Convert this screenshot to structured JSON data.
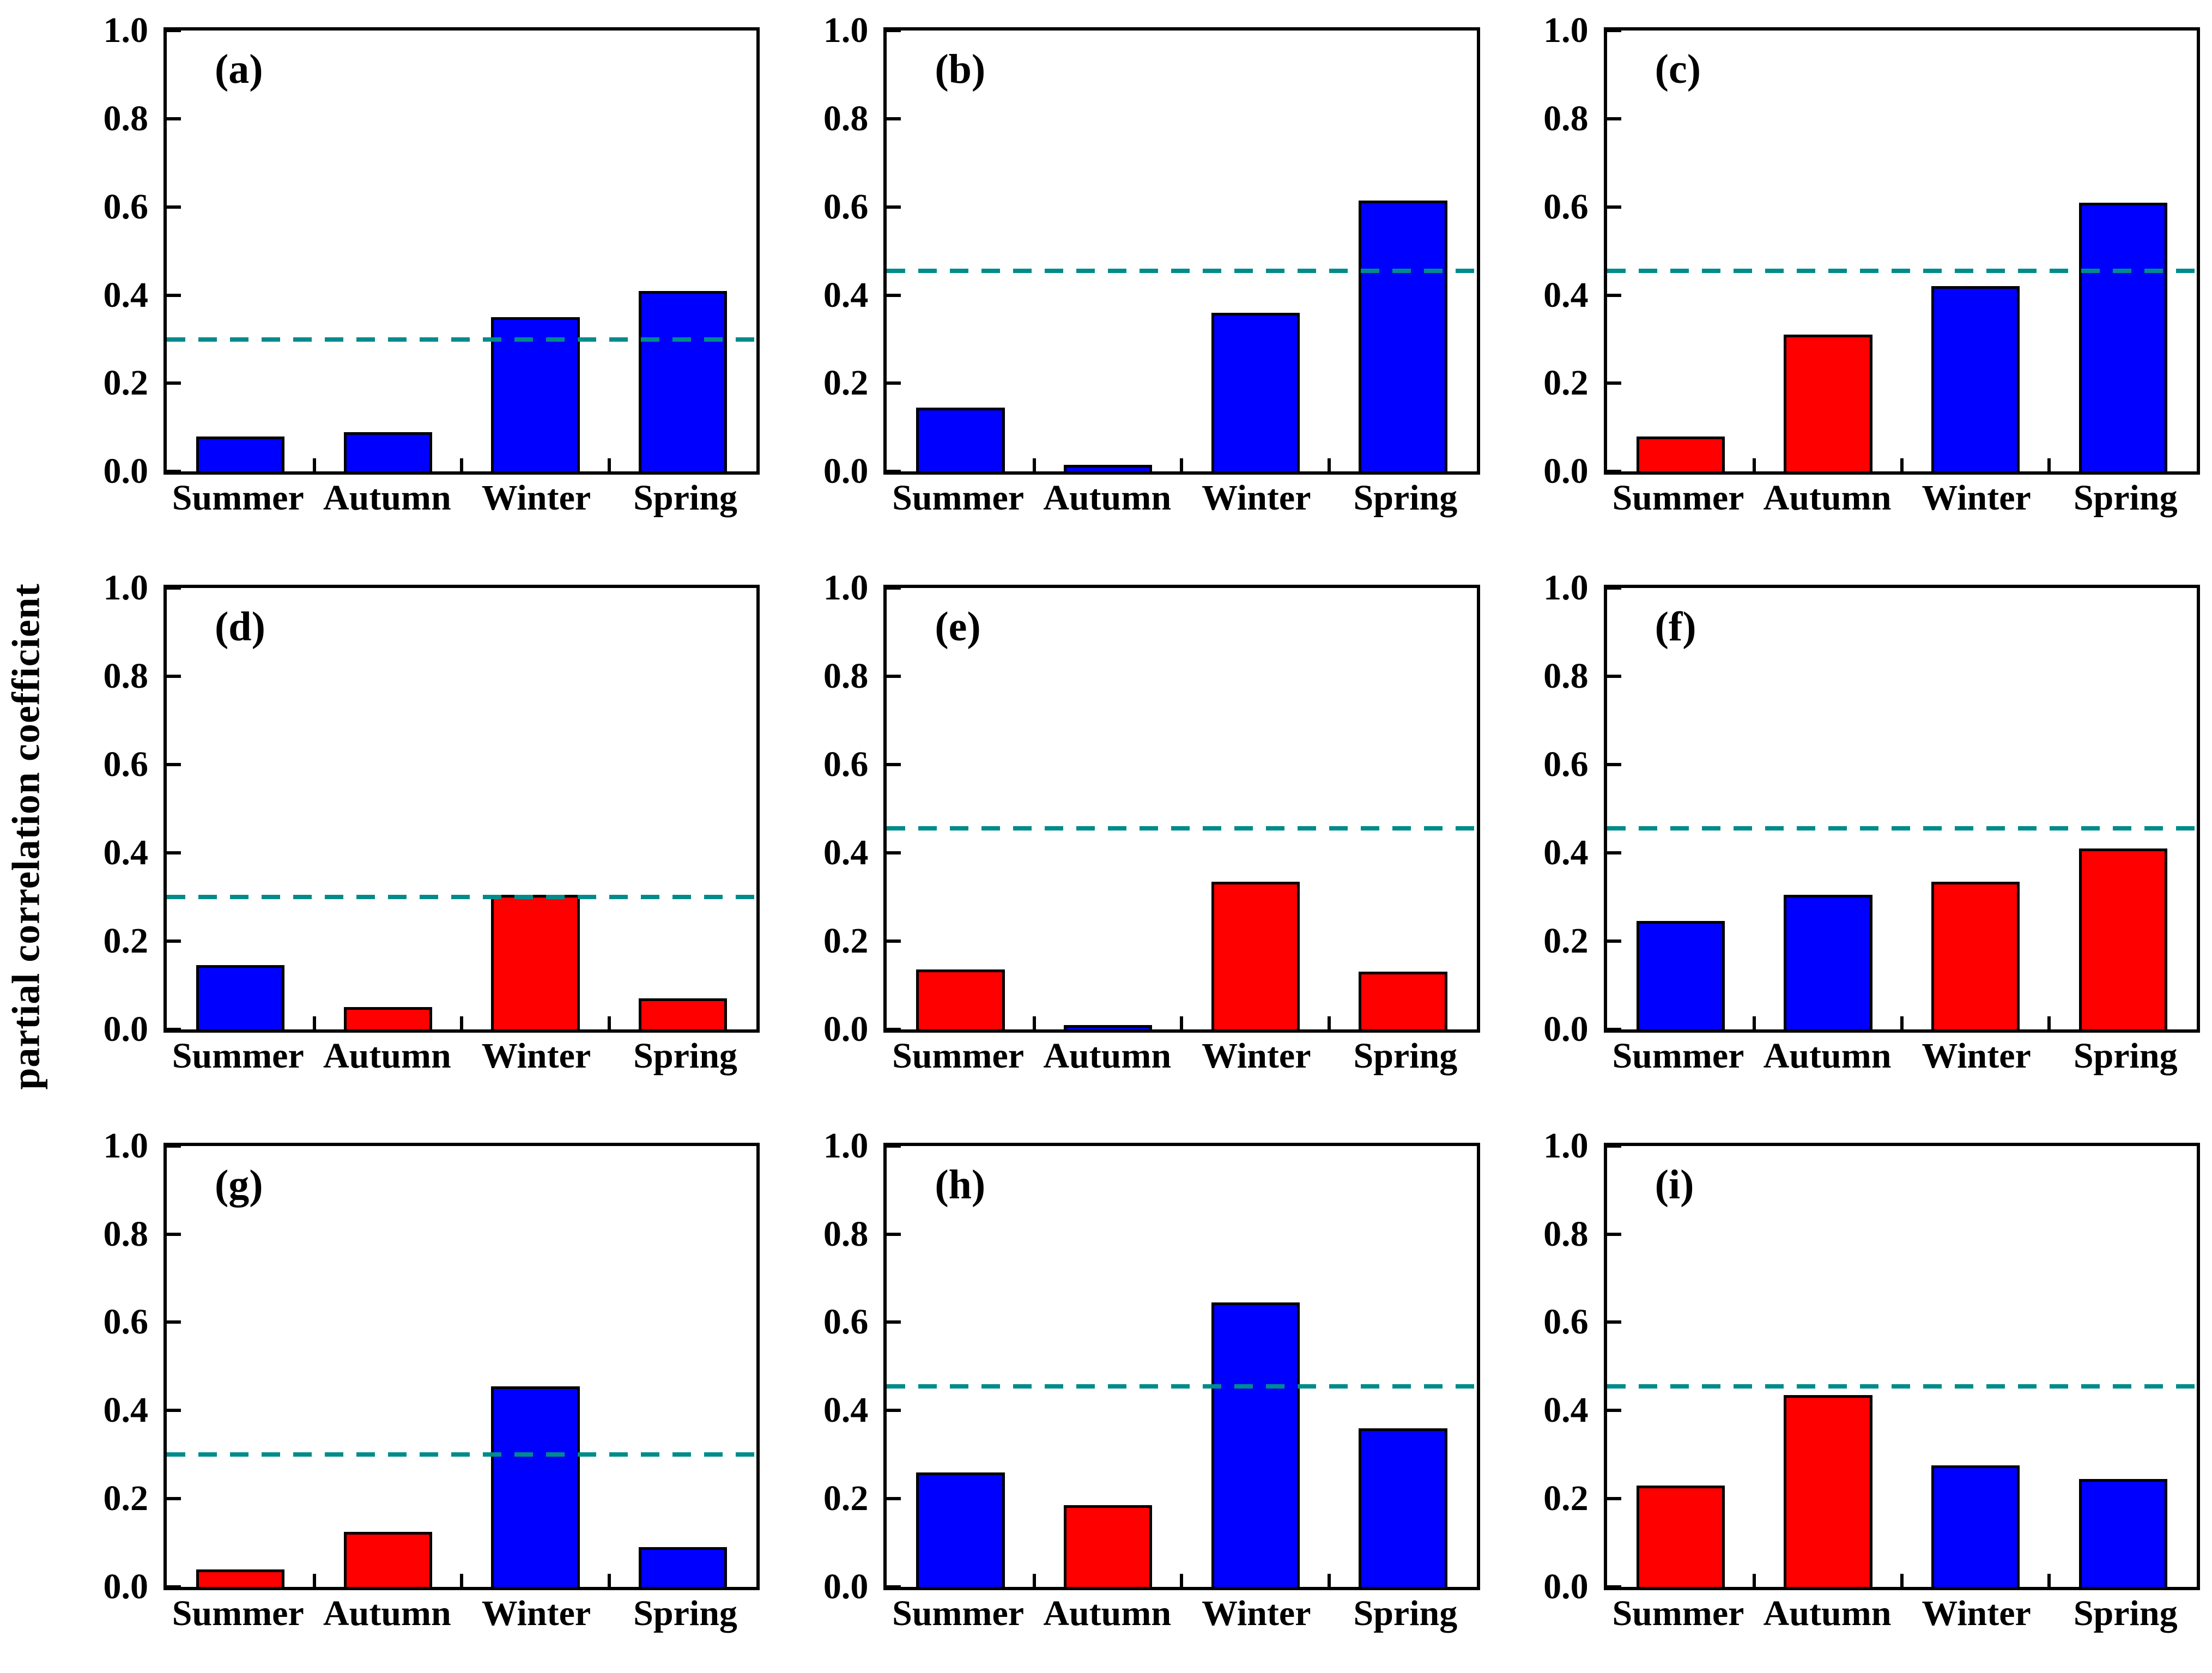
{
  "figure": {
    "ylabel": "partial correlation coefficient",
    "categories": [
      "Summer",
      "Autumn",
      "Winter",
      "Spring"
    ],
    "ytick_labels": [
      "0.0",
      "0.2",
      "0.4",
      "0.6",
      "0.8",
      "1.0"
    ],
    "colors": {
      "blue": "#0000ff",
      "red": "#ff0000",
      "threshold_line": "#008b8b",
      "axis": "#000000",
      "background": "#ffffff"
    }
  },
  "chart_data": [
    {
      "type": "bar",
      "panel_label": "(a)",
      "categories": [
        "Summer",
        "Autumn",
        "Winter",
        "Spring"
      ],
      "values": [
        0.08,
        0.09,
        0.35,
        0.41
      ],
      "bar_colors": [
        "blue",
        "blue",
        "blue",
        "blue"
      ],
      "significance_threshold": 0.3,
      "ylim": [
        0.0,
        1.0
      ]
    },
    {
      "type": "bar",
      "panel_label": "(b)",
      "categories": [
        "Summer",
        "Autumn",
        "Winter",
        "Spring"
      ],
      "values": [
        0.145,
        0.015,
        0.36,
        0.615
      ],
      "bar_colors": [
        "blue",
        "blue",
        "blue",
        "blue"
      ],
      "significance_threshold": 0.455,
      "ylim": [
        0.0,
        1.0
      ]
    },
    {
      "type": "bar",
      "panel_label": "(c)",
      "categories": [
        "Summer",
        "Autumn",
        "Winter",
        "Spring"
      ],
      "values": [
        0.08,
        0.31,
        0.42,
        0.61
      ],
      "bar_colors": [
        "red",
        "red",
        "blue",
        "blue"
      ],
      "significance_threshold": 0.455,
      "ylim": [
        0.0,
        1.0
      ]
    },
    {
      "type": "bar",
      "panel_label": "(d)",
      "categories": [
        "Summer",
        "Autumn",
        "Winter",
        "Spring"
      ],
      "values": [
        0.145,
        0.05,
        0.305,
        0.07
      ],
      "bar_colors": [
        "blue",
        "red",
        "red",
        "red"
      ],
      "significance_threshold": 0.3,
      "ylim": [
        0.0,
        1.0
      ]
    },
    {
      "type": "bar",
      "panel_label": "(e)",
      "categories": [
        "Summer",
        "Autumn",
        "Winter",
        "Spring"
      ],
      "values": [
        0.135,
        0.01,
        0.335,
        0.13
      ],
      "bar_colors": [
        "red",
        "blue",
        "red",
        "red"
      ],
      "significance_threshold": 0.455,
      "ylim": [
        0.0,
        1.0
      ]
    },
    {
      "type": "bar",
      "panel_label": "(f)",
      "categories": [
        "Summer",
        "Autumn",
        "Winter",
        "Spring"
      ],
      "values": [
        0.245,
        0.305,
        0.335,
        0.41
      ],
      "bar_colors": [
        "blue",
        "blue",
        "red",
        "red"
      ],
      "significance_threshold": 0.455,
      "ylim": [
        0.0,
        1.0
      ]
    },
    {
      "type": "bar",
      "panel_label": "(g)",
      "categories": [
        "Summer",
        "Autumn",
        "Winter",
        "Spring"
      ],
      "values": [
        0.04,
        0.125,
        0.455,
        0.09
      ],
      "bar_colors": [
        "red",
        "red",
        "blue",
        "blue"
      ],
      "significance_threshold": 0.3,
      "ylim": [
        0.0,
        1.0
      ]
    },
    {
      "type": "bar",
      "panel_label": "(h)",
      "categories": [
        "Summer",
        "Autumn",
        "Winter",
        "Spring"
      ],
      "values": [
        0.26,
        0.185,
        0.645,
        0.36
      ],
      "bar_colors": [
        "blue",
        "red",
        "blue",
        "blue"
      ],
      "significance_threshold": 0.455,
      "ylim": [
        0.0,
        1.0
      ]
    },
    {
      "type": "bar",
      "panel_label": "(i)",
      "categories": [
        "Summer",
        "Autumn",
        "Winter",
        "Spring"
      ],
      "values": [
        0.23,
        0.435,
        0.275,
        0.245
      ],
      "bar_colors": [
        "red",
        "red",
        "blue",
        "blue"
      ],
      "significance_threshold": 0.455,
      "ylim": [
        0.0,
        1.0
      ]
    }
  ]
}
